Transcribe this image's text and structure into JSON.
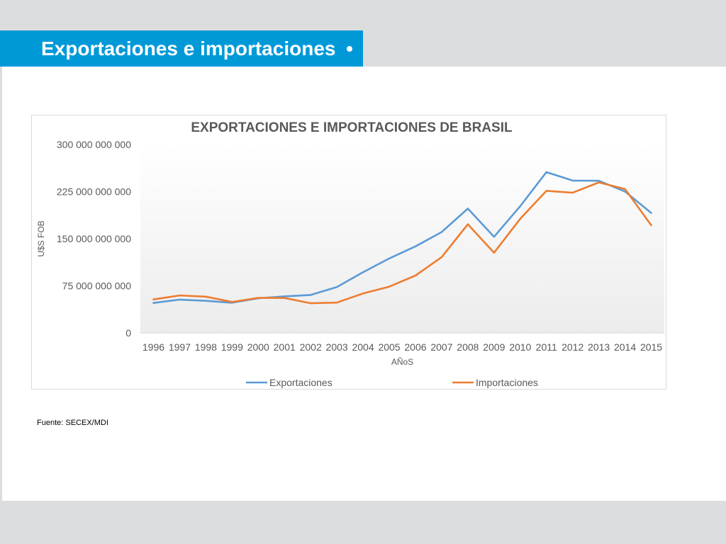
{
  "header": {
    "title": "Exportaciones e importaciones"
  },
  "source": "Fuente: SECEX/MDI",
  "colors": {
    "accent": "#0099d8",
    "exports": "#5b9bd5",
    "imports": "#ed7d31"
  },
  "chart_data": {
    "type": "line",
    "title": "EXPORTACIONES E IMPORTACIONES DE BRASIL",
    "xlabel": "AÑoS",
    "ylabel": "U$S FOB",
    "ylim": [
      0,
      300000000000
    ],
    "yticks": [
      0,
      75000000000,
      150000000000,
      225000000000,
      300000000000
    ],
    "ytick_labels": [
      "0",
      "75 000 000 000",
      "150 000 000 000",
      "225 000 000 000",
      "300 000 000 000"
    ],
    "grid": false,
    "legend": "bottom",
    "categories": [
      "1996",
      "1997",
      "1998",
      "1999",
      "2000",
      "2001",
      "2002",
      "2003",
      "2004",
      "2005",
      "2006",
      "2007",
      "2008",
      "2009",
      "2010",
      "2011",
      "2012",
      "2013",
      "2014",
      "2015"
    ],
    "series": [
      {
        "name": "Exportaciones",
        "color": "#5b9bd5",
        "values": [
          47700000000,
          53000000000,
          51100000000,
          48000000000,
          55100000000,
          58200000000,
          60400000000,
          73100000000,
          96700000000,
          118500000000,
          137800000000,
          160600000000,
          197900000000,
          153000000000,
          201900000000,
          256000000000,
          242600000000,
          242200000000,
          225100000000,
          191100000000
        ]
      },
      {
        "name": "Importaciones",
        "color": "#ed7d31",
        "values": [
          53300000000,
          59700000000,
          57800000000,
          49300000000,
          55800000000,
          55600000000,
          47200000000,
          48300000000,
          62800000000,
          73600000000,
          91400000000,
          120600000000,
          173000000000,
          127700000000,
          181800000000,
          226200000000,
          223200000000,
          239700000000,
          229100000000,
          171400000000
        ]
      }
    ]
  }
}
